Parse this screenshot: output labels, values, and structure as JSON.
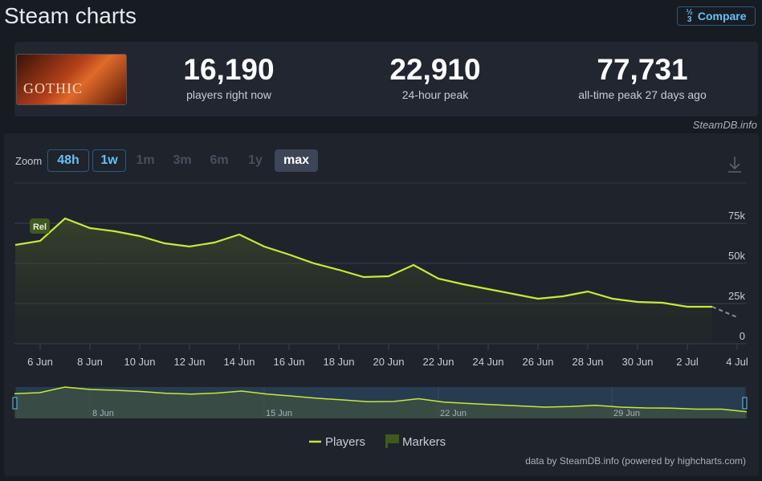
{
  "header": {
    "title": "Steam charts",
    "compare": "Compare"
  },
  "stats": [
    {
      "value": "16,190",
      "label": "players right now"
    },
    {
      "value": "22,910",
      "label": "24-hour peak"
    },
    {
      "value": "77,731",
      "label": "all-time peak 27 days ago"
    }
  ],
  "game_logo": "GOTHIC",
  "source": "SteamDB.info",
  "zoom": {
    "label": "Zoom",
    "options": [
      "48h",
      "1w",
      "1m",
      "3m",
      "6m",
      "1y",
      "max"
    ]
  },
  "chart_data": {
    "type": "line",
    "categories": [
      null,
      "6 Jun",
      null,
      "8 Jun",
      null,
      "10 Jun",
      null,
      "12 Jun",
      null,
      "14 Jun",
      null,
      "16 Jun",
      null,
      "18 Jun",
      null,
      "20 Jun",
      null,
      "22 Jun",
      null,
      "24 Jun",
      null,
      "26 Jun",
      null,
      "28 Jun",
      null,
      "30 Jun",
      null,
      "2 Jul",
      null,
      "4 Jul"
    ],
    "series": [
      {
        "name": "Players",
        "color": "#c8e83a",
        "values": [
          61500,
          64000,
          78000,
          72000,
          70000,
          67000,
          62500,
          60500,
          63000,
          68000,
          60500,
          55500,
          50000,
          46000,
          41500,
          42000,
          49000,
          40500,
          37000,
          34000,
          31000,
          28000,
          29500,
          32500,
          28000,
          26000,
          25500,
          23000,
          23000,
          16500
        ]
      }
    ],
    "markers": {
      "name": "Markers",
      "color": "#3f5a1e"
    },
    "annotation": "Rel",
    "ylim": [
      0,
      100000
    ],
    "yticks": [
      0,
      {
        "value": 25000,
        "label": "25k"
      },
      {
        "value": 50000,
        "label": "50k"
      },
      {
        "value": 75000,
        "label": "75k"
      }
    ],
    "grid": true,
    "navigator_labels": [
      "8 Jun",
      "15 Jun",
      "22 Jun",
      "29 Jun"
    ],
    "credit": "data by SteamDB.info (powered by highcharts.com)"
  }
}
